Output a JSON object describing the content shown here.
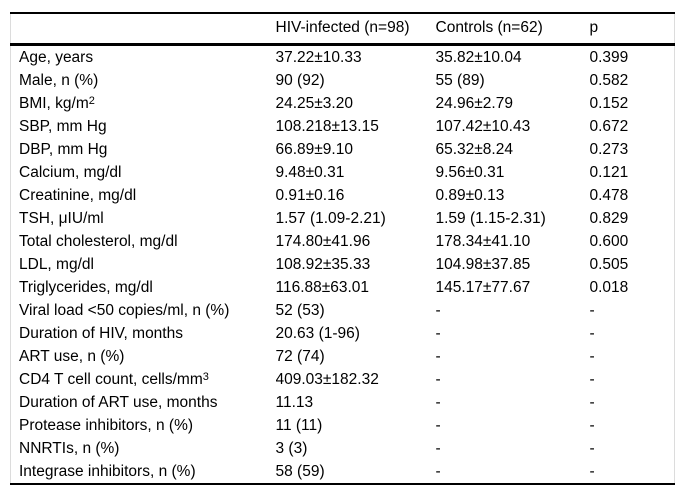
{
  "table": {
    "header": {
      "label": "",
      "hiv": "HIV-infected (n=98)",
      "controls": "Controls (n=62)",
      "p": "p"
    },
    "rows": [
      {
        "label": "Age, years",
        "hiv": "37.22±10.33",
        "controls": "35.82±10.04",
        "p": "0.399"
      },
      {
        "label": "Male, n (%)",
        "hiv": "90 (92)",
        "controls": "55 (89)",
        "p": "0.582"
      },
      {
        "label": "BMI, kg/m",
        "sup": "2",
        "hiv": "24.25±3.20",
        "controls": "24.96±2.79",
        "p": "0.152"
      },
      {
        "label": "SBP, mm Hg",
        "hiv": "108.218±13.15",
        "controls": "107.42±10.43",
        "p": "0.672"
      },
      {
        "label": "DBP, mm Hg",
        "hiv": "66.89±9.10",
        "controls": "65.32±8.24",
        "p": "0.273"
      },
      {
        "label": "Calcium, mg/dl",
        "hiv": "9.48±0.31",
        "controls": "9.56±0.31",
        "p": "0.121"
      },
      {
        "label": "Creatinine, mg/dl",
        "hiv": "0.91±0.16",
        "controls": "0.89±0.13",
        "p": "0.478"
      },
      {
        "label": "TSH, μIU/ml",
        "hiv": "1.57 (1.09-2.21)",
        "controls": "1.59 (1.15-2.31)",
        "p": "0.829"
      },
      {
        "label": "Total cholesterol, mg/dl",
        "hiv": "174.80±41.96",
        "controls": "178.34±41.10",
        "p": "0.600"
      },
      {
        "label": "LDL, mg/dl",
        "hiv": "108.92±35.33",
        "controls": "104.98±37.85",
        "p": "0.505"
      },
      {
        "label": "Triglycerides, mg/dl",
        "hiv": "116.88±63.01",
        "controls": "145.17±77.67",
        "p": "0.018"
      },
      {
        "label": "Viral load <50 copies/ml, n (%)",
        "hiv": "52 (53)",
        "controls": "-",
        "p": "-"
      },
      {
        "label": "Duration of HIV, months",
        "hiv": "20.63 (1-96)",
        "controls": "-",
        "p": "-"
      },
      {
        "label": "ART use, n (%)",
        "hiv": "72 (74)",
        "controls": "-",
        "p": "-"
      },
      {
        "label": "CD4 T cell count, cells/mm",
        "sup": "3",
        "hiv": "409.03±182.32",
        "controls": "-",
        "p": "-"
      },
      {
        "label": "Duration of ART use, months",
        "hiv": "11.13",
        "controls": "-",
        "p": "-"
      },
      {
        "label": "Protease inhibitors, n (%)",
        "hiv": "11 (11)",
        "controls": "-",
        "p": "-"
      },
      {
        "label": "NNRTIs, n (%)",
        "hiv": "3 (3)",
        "controls": "-",
        "p": "-"
      },
      {
        "label": "Integrase inhibitors, n (%)",
        "hiv": "58 (59)",
        "controls": "-",
        "p": "-"
      }
    ]
  }
}
